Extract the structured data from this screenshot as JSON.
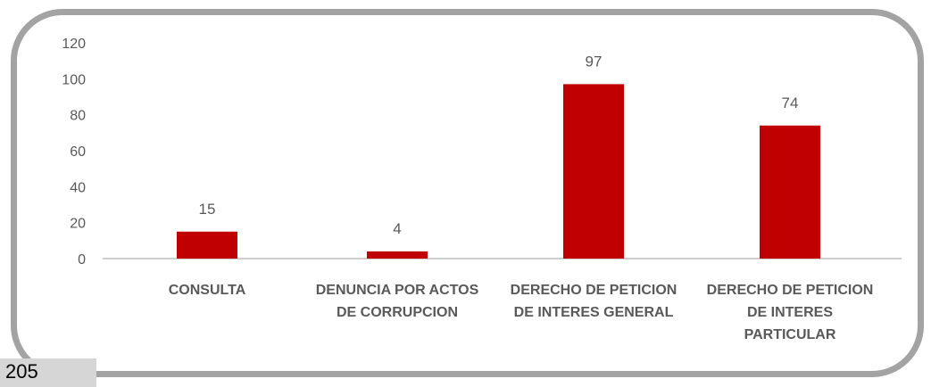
{
  "page": {
    "number": "205"
  },
  "chart_data": {
    "type": "bar",
    "title": "",
    "xlabel": "",
    "ylabel": "",
    "ylim": [
      0,
      120
    ],
    "y_ticks": [
      0,
      20,
      40,
      60,
      80,
      100,
      120
    ],
    "categories": [
      [
        "CONSULTA"
      ],
      [
        "DENUNCIA POR ACTOS",
        "DE CORRUPCION"
      ],
      [
        "DERECHO DE PETICION",
        "DE INTERES GENERAL"
      ],
      [
        "DERECHO DE PETICION",
        "DE INTERES",
        "PARTICULAR"
      ]
    ],
    "values": [
      15,
      4,
      97,
      74
    ],
    "data_labels": [
      "15",
      "4",
      "97",
      "74"
    ],
    "bar_color": "#c00000",
    "grid": false,
    "legend": "none"
  }
}
